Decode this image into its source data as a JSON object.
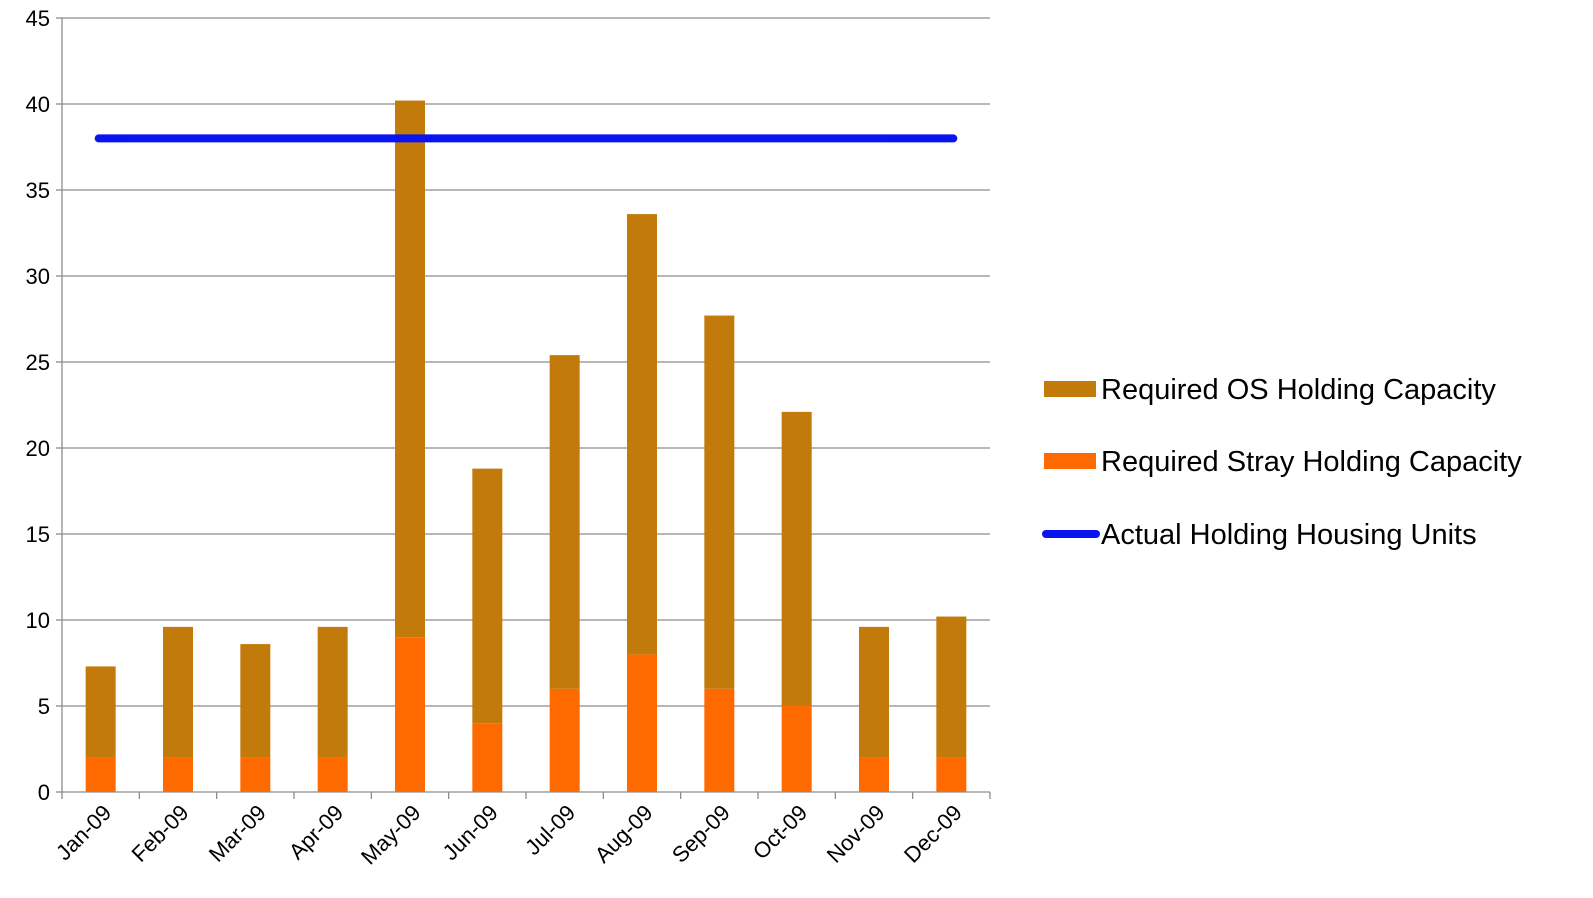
{
  "chart_data": {
    "type": "bar",
    "stacked": true,
    "categories": [
      "Jan-09",
      "Feb-09",
      "Mar-09",
      "Apr-09",
      "May-09",
      "Jun-09",
      "Jul-09",
      "Aug-09",
      "Sep-09",
      "Oct-09",
      "Nov-09",
      "Dec-09"
    ],
    "series": [
      {
        "name": "Required Stray Holding Capacity",
        "type": "bar",
        "color": "#ff6a00",
        "values": [
          2,
          2,
          2,
          2,
          9,
          4,
          6,
          8,
          6,
          5,
          2,
          2
        ]
      },
      {
        "name": "Required OS Holding Capacity",
        "type": "bar",
        "color": "#c27a0a",
        "values": [
          5.3,
          7.6,
          6.6,
          7.6,
          31.2,
          14.8,
          19.4,
          25.6,
          21.7,
          17.1,
          7.6,
          8.2
        ]
      },
      {
        "name": "Actual Holding Housing Units",
        "type": "line",
        "color": "#0a14f0",
        "values": [
          38,
          38,
          38,
          38,
          38,
          38,
          38,
          38,
          38,
          38,
          38,
          38
        ]
      }
    ],
    "ylim": [
      0,
      45
    ],
    "yticks": [
      0,
      5,
      10,
      15,
      20,
      25,
      30,
      35,
      40,
      45
    ],
    "grid": true,
    "legend_position": "right",
    "legend_order": [
      "Required OS Holding Capacity",
      "Required Stray Holding Capacity",
      "Actual Holding Housing Units"
    ]
  }
}
